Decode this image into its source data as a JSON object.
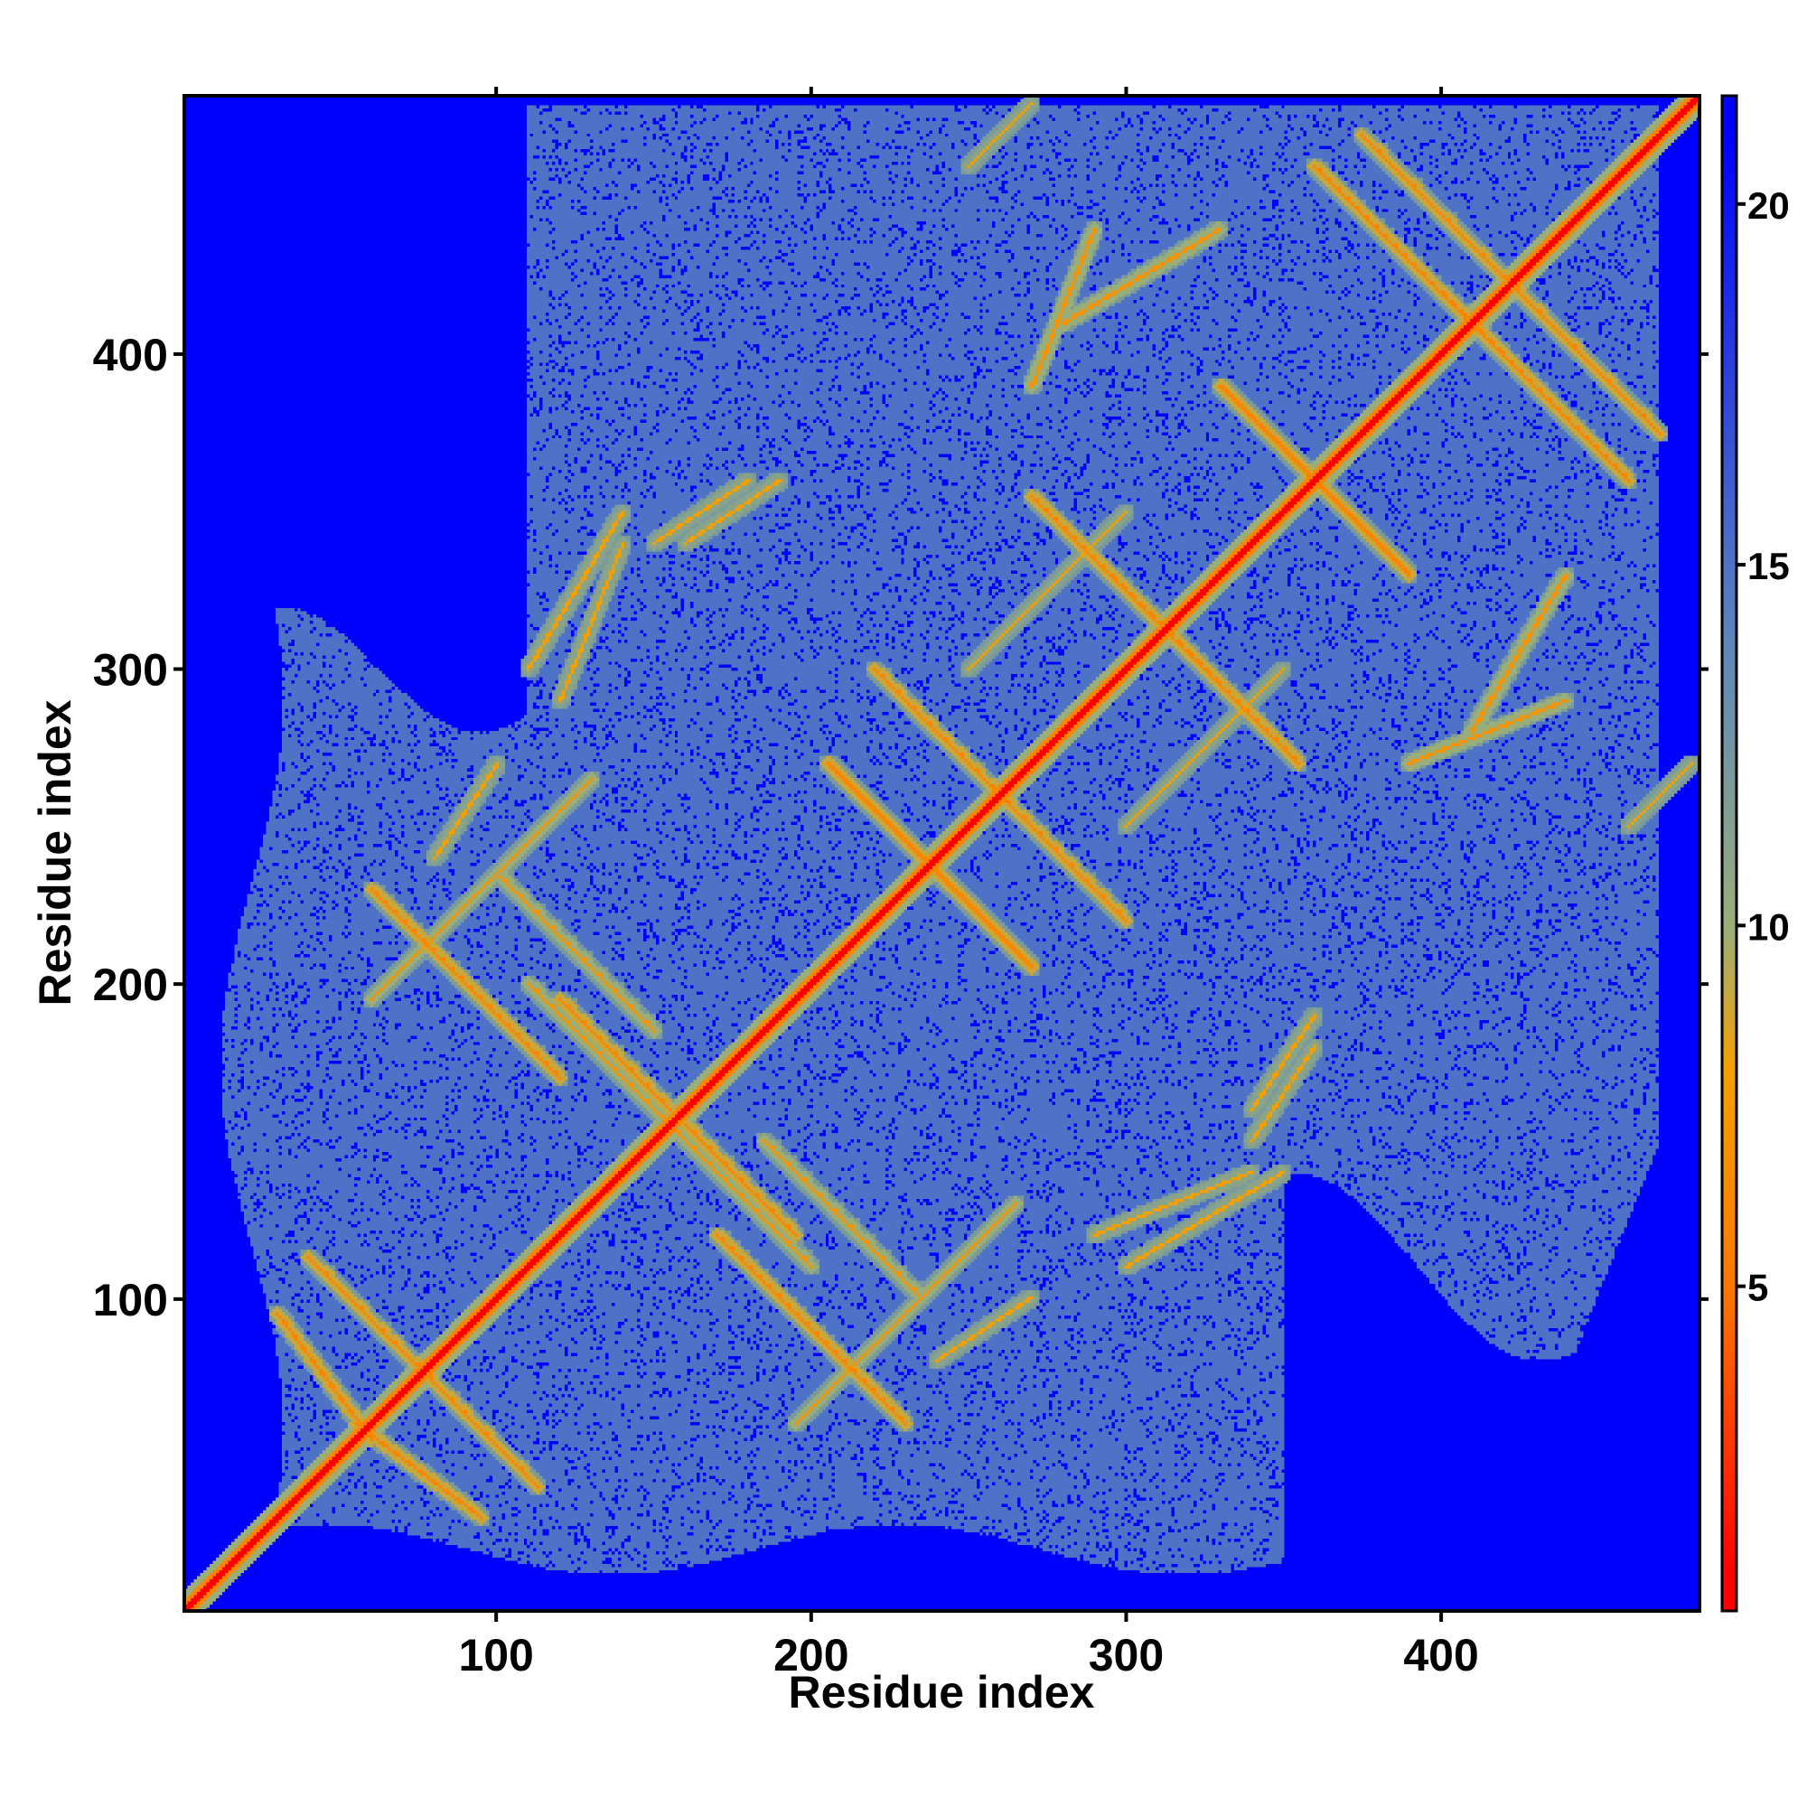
{
  "chart_data": {
    "type": "heatmap",
    "title": "",
    "xlabel": "Residue index",
    "ylabel": "Residue index",
    "xlim": [
      1,
      482
    ],
    "ylim": [
      1,
      482
    ],
    "x_ticks": [
      100,
      200,
      300,
      400
    ],
    "y_ticks": [
      100,
      200,
      300,
      400
    ],
    "colorbar": {
      "ticks": [
        5,
        10,
        15,
        20
      ],
      "range": [
        0.5,
        21.5
      ],
      "colors": [
        "#ff0000",
        "#ff7700",
        "#f5a000",
        "#9aae7a",
        "#5b86bc",
        "#0000ff"
      ],
      "stops": [
        1,
        5,
        8,
        10,
        14,
        21
      ]
    },
    "background_color": "#0000ff",
    "matrix_size": 482,
    "matrix_fill_value": 21,
    "core_region": {
      "description_visible": false,
      "value": 15
    },
    "diagonal": {
      "value": 1,
      "width_residues": 4
    },
    "contact_features": [
      {
        "type": "antiparallel",
        "x": [
          40,
          95
        ],
        "y": [
          40,
          95
        ],
        "value": 6,
        "offset": 18
      },
      {
        "type": "antiparallel",
        "x": [
          55,
          95
        ],
        "y": [
          30,
          60
        ],
        "value": 6,
        "offset": 0
      },
      {
        "type": "parallel",
        "x": [
          60,
          130
        ],
        "y": [
          195,
          265
        ],
        "value": 7,
        "offset": 0
      },
      {
        "type": "antiparallel",
        "x": [
          110,
          160
        ],
        "y": [
          150,
          200
        ],
        "value": 7,
        "offset": 0
      },
      {
        "type": "antiparallel",
        "x": [
          120,
          170
        ],
        "y": [
          120,
          170
        ],
        "value": 6,
        "offset": 25
      },
      {
        "type": "antiparallel",
        "x": [
          170,
          230
        ],
        "y": [
          60,
          120
        ],
        "value": 6,
        "offset": 0
      },
      {
        "type": "antiparallel",
        "x": [
          185,
          235
        ],
        "y": [
          100,
          150
        ],
        "value": 7,
        "offset": 0
      },
      {
        "type": "antiparallel",
        "x": [
          220,
          270
        ],
        "y": [
          220,
          270
        ],
        "value": 6,
        "offset": 30
      },
      {
        "type": "antiparallel",
        "x": [
          230,
          270
        ],
        "y": [
          235,
          275
        ],
        "value": 6,
        "offset": -30
      },
      {
        "type": "antiparallel",
        "x": [
          270,
          330
        ],
        "y": [
          270,
          330
        ],
        "value": 6,
        "offset": 25
      },
      {
        "type": "antiparallel",
        "x": [
          330,
          370
        ],
        "y": [
          330,
          370
        ],
        "value": 6,
        "offset": 20
      },
      {
        "type": "antiparallel",
        "x": [
          375,
          430
        ],
        "y": [
          375,
          430
        ],
        "value": 6,
        "offset": 40
      },
      {
        "type": "antiparallel",
        "x": [
          400,
          460
        ],
        "y": [
          400,
          460
        ],
        "value": 6,
        "offset": -40
      },
      {
        "type": "parallel",
        "x": [
          280,
          330
        ],
        "y": [
          410,
          440
        ],
        "value": 7,
        "offset": 0
      },
      {
        "type": "parallel",
        "x": [
          390,
          440
        ],
        "y": [
          270,
          290
        ],
        "value": 7,
        "offset": 0
      },
      {
        "type": "parallel",
        "x": [
          250,
          300
        ],
        "y": [
          300,
          350
        ],
        "value": 8,
        "offset": 0
      },
      {
        "type": "parallel",
        "x": [
          300,
          350
        ],
        "y": [
          110,
          140
        ],
        "value": 8,
        "offset": 0
      },
      {
        "type": "parallel",
        "x": [
          120,
          140
        ],
        "y": [
          290,
          340
        ],
        "value": 8,
        "offset": 0
      },
      {
        "type": "parallel",
        "x": [
          150,
          180
        ],
        "y": [
          340,
          360
        ],
        "value": 8,
        "offset": 0
      },
      {
        "type": "parallel",
        "x": [
          240,
          270
        ],
        "y": [
          80,
          100
        ],
        "value": 8,
        "offset": 0
      },
      {
        "type": "parallel",
        "x": [
          340,
          360
        ],
        "y": [
          160,
          190
        ],
        "value": 8,
        "offset": 0
      },
      {
        "type": "parallel",
        "x": [
          460,
          480
        ],
        "y": [
          250,
          270
        ],
        "value": 8,
        "offset": 0
      }
    ]
  }
}
